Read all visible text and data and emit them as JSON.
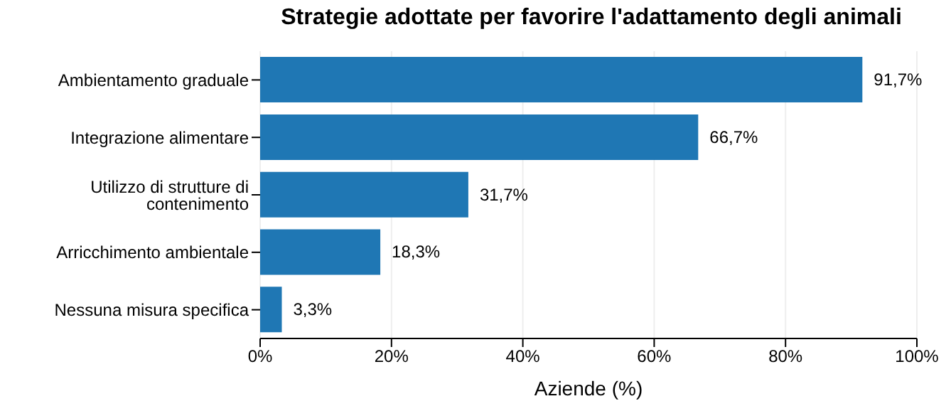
{
  "chart_data": {
    "type": "bar",
    "orientation": "horizontal",
    "title": "Strategie adottate per favorire l'adattamento degli animali",
    "xlabel": "Aziende (%)",
    "categories": [
      "Ambientamento graduale",
      "Integrazione alimentare",
      "Utilizzo di strutture di contenimento",
      "Arricchimento ambientale",
      "Nessuna misura specifica"
    ],
    "values": [
      91.7,
      66.7,
      31.7,
      18.3,
      3.3
    ],
    "value_labels": [
      "91,7%",
      "66,7%",
      "31,7%",
      "18,3%",
      "3,3%"
    ],
    "color": "#1f77b4",
    "xlim": [
      0,
      100
    ],
    "xticks": [
      {
        "value": 0,
        "label": "0%"
      },
      {
        "value": 20,
        "label": "20%"
      },
      {
        "value": 40,
        "label": "40%"
      },
      {
        "value": 60,
        "label": "60%"
      },
      {
        "value": 80,
        "label": "80%"
      },
      {
        "value": 100,
        "label": "100%"
      }
    ],
    "grid": "x",
    "legend": false
  }
}
